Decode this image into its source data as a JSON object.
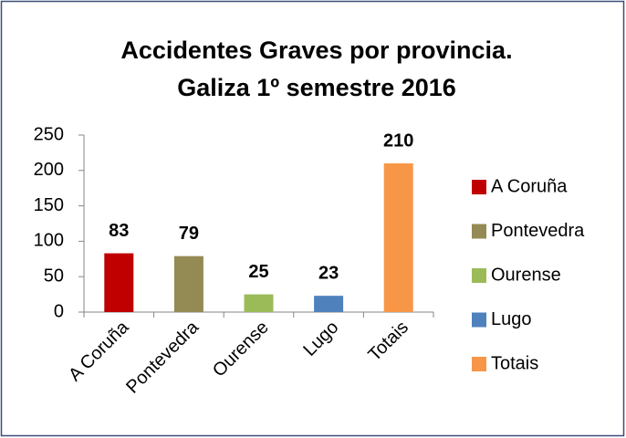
{
  "chart_data": {
    "type": "bar",
    "title": [
      "Accidentes Graves por provincia.",
      "Galiza 1º semestre 2016"
    ],
    "categories": [
      "A Coruña",
      "Pontevedra",
      "Ourense",
      "Lugo",
      "Totais"
    ],
    "values": [
      83,
      79,
      25,
      23,
      210
    ],
    "colors": [
      "#c00000",
      "#948a54",
      "#9bbb59",
      "#4f81bd",
      "#f79646"
    ],
    "ylim": [
      0,
      250
    ],
    "yticks": [
      0,
      50,
      100,
      150,
      200,
      250
    ],
    "grid": false,
    "legend": "right"
  }
}
